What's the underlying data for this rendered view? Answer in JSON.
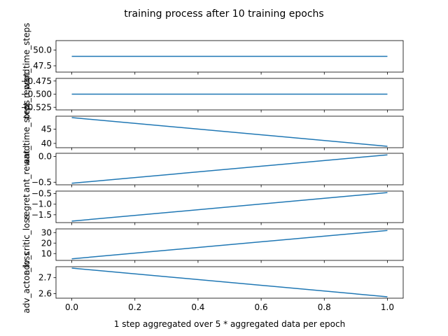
{
  "figure": {
    "title": "training process after 10 training epochs",
    "xlabel": "1 step aggregated over 5 * aggregated data per epoch",
    "line_color": "#1f77b4"
  },
  "chart_data": [
    {
      "type": "line",
      "ylabel": "prot_time_steps",
      "x": [
        0,
        1
      ],
      "values": [
        49.0,
        49.0
      ],
      "ylim": [
        46.5,
        51.5
      ],
      "yticks": [
        47.5,
        50.0
      ],
      "yticklabels": [
        "47.5",
        "50.0"
      ]
    },
    {
      "type": "line",
      "ylabel": "prot_reward",
      "x": [
        0,
        1
      ],
      "values": [
        -0.5,
        -0.5
      ],
      "ylim": [
        -0.53,
        -0.47
      ],
      "yticks": [
        -0.525,
        -0.5,
        -0.475
      ],
      "yticklabels": [
        "−0.525",
        "−0.500",
        "−0.475"
      ]
    },
    {
      "type": "line",
      "ylabel": "ant_time_steps",
      "x": [
        0,
        1
      ],
      "values": [
        49.0,
        39.0
      ],
      "ylim": [
        38.5,
        49.5
      ],
      "yticks": [
        40,
        45
      ],
      "yticklabels": [
        "40",
        "45"
      ]
    },
    {
      "type": "line",
      "ylabel": "ant_reward",
      "x": [
        0,
        1
      ],
      "values": [
        -0.52,
        0.03
      ],
      "ylim": [
        -0.55,
        0.06
      ],
      "yticks": [
        -0.5,
        0.0
      ],
      "yticklabels": [
        "−0.5",
        "0.0"
      ]
    },
    {
      "type": "line",
      "ylabel": "regret",
      "x": [
        0,
        1
      ],
      "values": [
        -1.8,
        -0.45
      ],
      "ylim": [
        -1.87,
        -0.38
      ],
      "yticks": [
        -1.5,
        -1.0,
        -0.5
      ],
      "yticklabels": [
        "−1.5",
        "−1.0",
        "−0.5"
      ]
    },
    {
      "type": "line",
      "ylabel": "adv_critic_loss",
      "x": [
        0,
        1
      ],
      "values": [
        5,
        32
      ],
      "ylim": [
        3.5,
        33.5
      ],
      "yticks": [
        10,
        20,
        30
      ],
      "yticklabels": [
        "10",
        "20",
        "30"
      ]
    },
    {
      "type": "line",
      "ylabel": "adv_actor_loss",
      "x": [
        0,
        1
      ],
      "values": [
        2.76,
        2.58
      ],
      "ylim": [
        2.571,
        2.769
      ],
      "yticks": [
        2.6,
        2.7
      ],
      "yticklabels": [
        "2.6",
        "2.7"
      ]
    }
  ],
  "shared_x": {
    "xlim": [
      -0.05,
      1.05
    ],
    "xticks": [
      0.0,
      0.2,
      0.4,
      0.6,
      0.8,
      1.0
    ],
    "xticklabels": [
      "0.0",
      "0.2",
      "0.4",
      "0.6",
      "0.8",
      "1.0"
    ]
  }
}
